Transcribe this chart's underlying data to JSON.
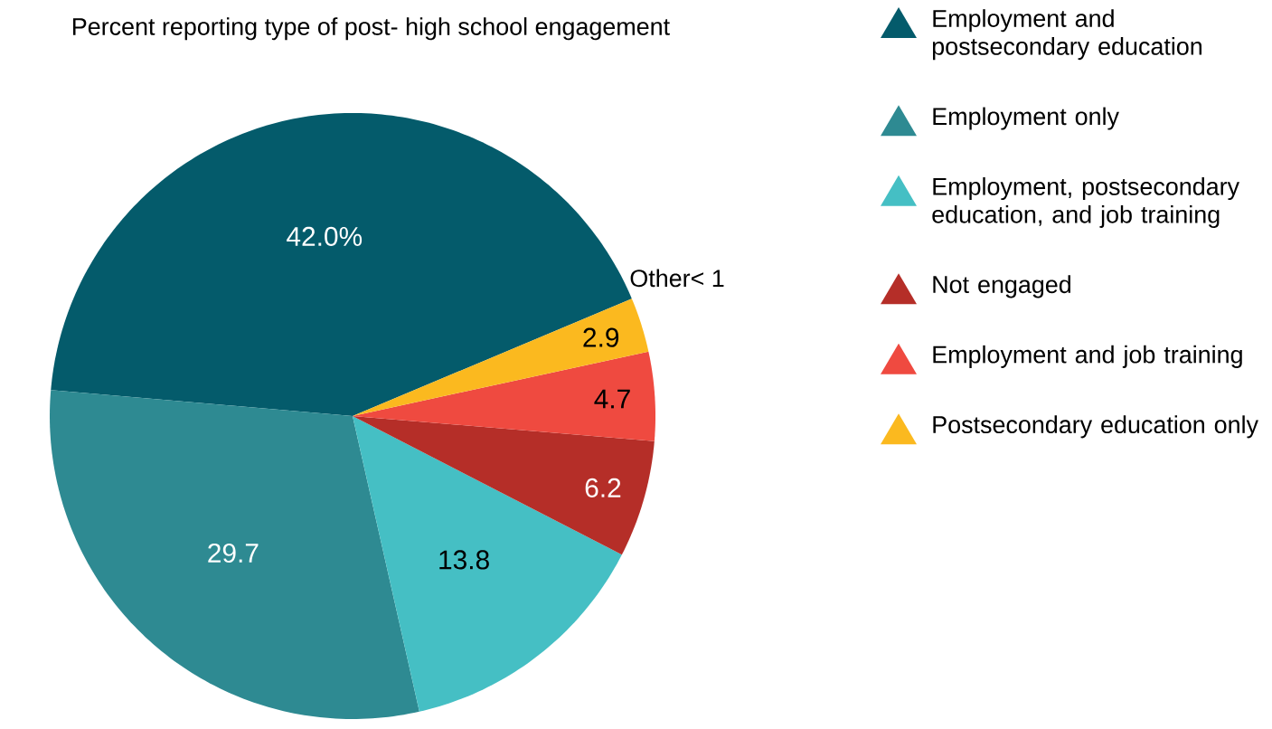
{
  "chart_data": {
    "type": "pie",
    "title": "Percent reporting type of post- high school engagement",
    "categories": [
      "Employment and postsecondary education",
      "Employment only",
      "Employment, postsecondary education, and job training",
      "Not engaged",
      "Employment and job training",
      "Postsecondary education only"
    ],
    "values": [
      42.0,
      29.7,
      13.8,
      6.2,
      4.7,
      2.9
    ],
    "value_labels": [
      "42.0%",
      "29.7",
      "13.8",
      "6.2",
      "4.7",
      "2.9"
    ],
    "colors": [
      "#045b6b",
      "#2e8a92",
      "#45bfc4",
      "#b52e28",
      "#ef4a40",
      "#fbb91f"
    ],
    "annotations": [
      "Other< 1"
    ],
    "legend": "right"
  }
}
